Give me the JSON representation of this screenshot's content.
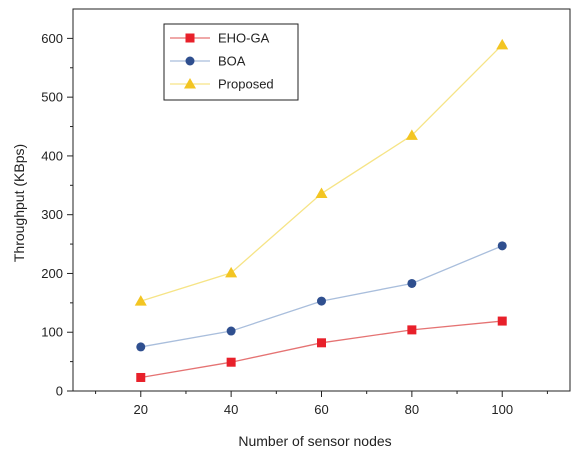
{
  "chart_data": {
    "type": "line",
    "title": "",
    "xlabel": "Number of sensor nodes",
    "ylabel": "Throughput (KBps)",
    "x": [
      20,
      40,
      60,
      80,
      100
    ],
    "xlim": [
      5,
      115
    ],
    "ylim": [
      0,
      650
    ],
    "xticks": [
      20,
      40,
      60,
      80,
      100
    ],
    "yticks": [
      0,
      100,
      200,
      300,
      400,
      500,
      600
    ],
    "grid": false,
    "legend_position": "top-left",
    "series": [
      {
        "name": "EHO-GA",
        "values": [
          23,
          49,
          82,
          104,
          119
        ],
        "color": "#e8202a",
        "line_color": "#e57373",
        "marker": "square"
      },
      {
        "name": "BOA",
        "values": [
          75,
          102,
          153,
          183,
          247
        ],
        "color": "#2f4f8f",
        "line_color": "#a9bedc",
        "marker": "circle"
      },
      {
        "name": "Proposed",
        "values": [
          153,
          201,
          336,
          435,
          589
        ],
        "color": "#f3c522",
        "line_color": "#f6e486",
        "marker": "triangle"
      }
    ]
  }
}
